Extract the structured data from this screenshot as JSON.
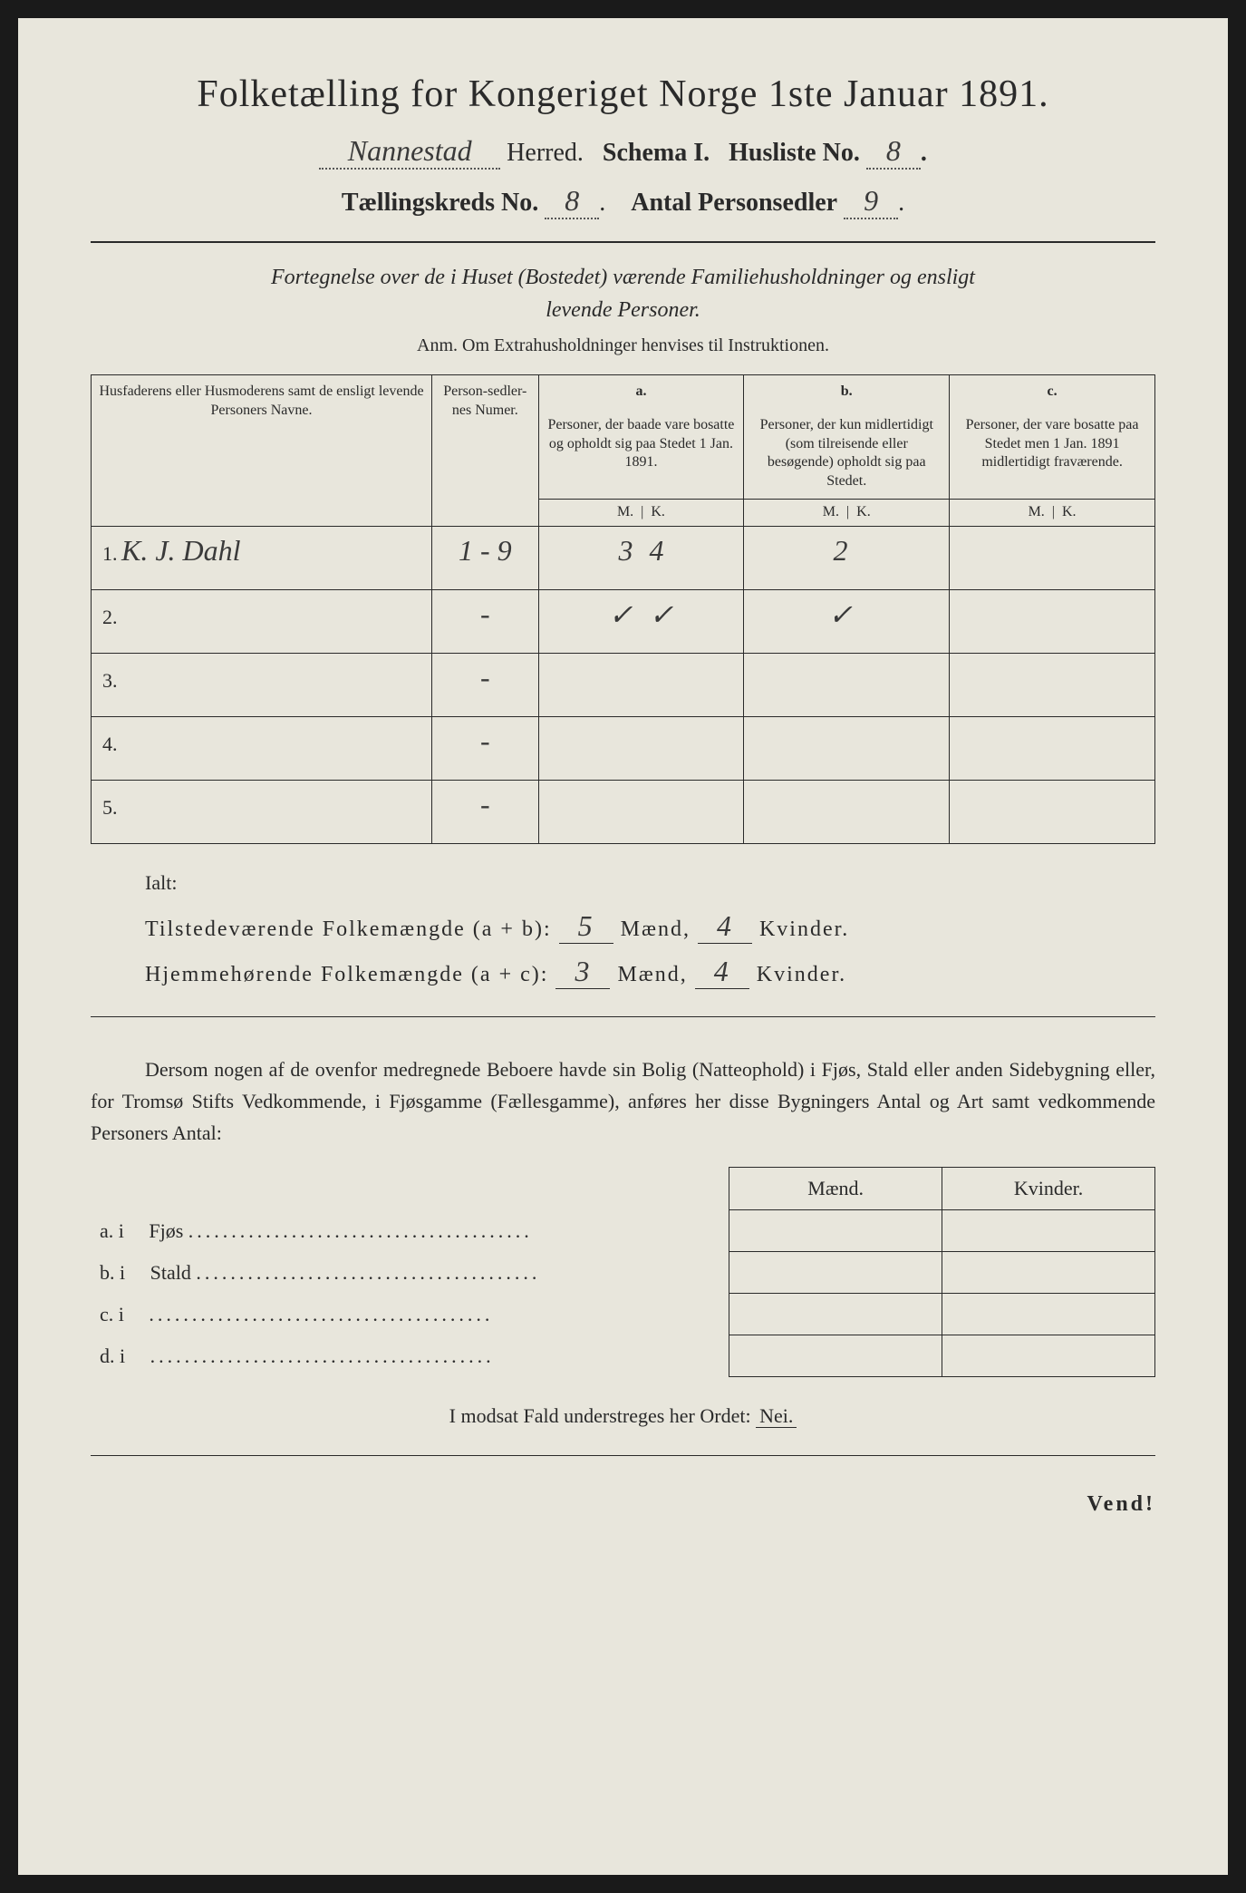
{
  "header": {
    "title": "Folketælling for Kongeriget Norge 1ste Januar 1891.",
    "herred_value": "Nannestad",
    "herred_label": "Herred.",
    "schema_label": "Schema I.",
    "husliste_label": "Husliste No.",
    "husliste_value": "8",
    "kreds_label": "Tællingskreds No.",
    "kreds_value": "8",
    "personsedler_label": "Antal Personsedler",
    "personsedler_value": "9"
  },
  "subtitle": {
    "line1": "Fortegnelse over de i Huset (Bostedet) værende Familiehusholdninger og ensligt",
    "line2": "levende Personer.",
    "anm": "Anm. Om Extrahusholdninger henvises til Instruktionen."
  },
  "table": {
    "col_name": "Husfaderens eller Husmoderens samt de ensligt levende Personers Navne.",
    "col_num": "Person-sedler-nes Numer.",
    "col_a_label": "a.",
    "col_a": "Personer, der baade vare bosatte og opholdt sig paa Stedet 1 Jan. 1891.",
    "col_b_label": "b.",
    "col_b": "Personer, der kun midlertidigt (som tilreisende eller besøgende) opholdt sig paa Stedet.",
    "col_c_label": "c.",
    "col_c": "Personer, der vare bosatte paa Stedet men 1 Jan. 1891 midlertidigt fraværende.",
    "m": "M.",
    "k": "K.",
    "rows": [
      {
        "n": "1.",
        "name": "K. J. Dahl",
        "num": "1 - 9",
        "am": "3",
        "ak": "4",
        "bm": "2",
        "bk": "",
        "cm": "",
        "ck": ""
      },
      {
        "n": "2.",
        "name": "",
        "num": "-",
        "am": "✓",
        "ak": "✓",
        "bm": "✓",
        "bk": "",
        "cm": "",
        "ck": ""
      },
      {
        "n": "3.",
        "name": "",
        "num": "-",
        "am": "",
        "ak": "",
        "bm": "",
        "bk": "",
        "cm": "",
        "ck": ""
      },
      {
        "n": "4.",
        "name": "",
        "num": "-",
        "am": "",
        "ak": "",
        "bm": "",
        "bk": "",
        "cm": "",
        "ck": ""
      },
      {
        "n": "5.",
        "name": "",
        "num": "-",
        "am": "",
        "ak": "",
        "bm": "",
        "bk": "",
        "cm": "",
        "ck": ""
      }
    ]
  },
  "ialt": {
    "label": "Ialt:",
    "line1_label": "Tilstedeværende Folkemængde (a + b):",
    "line1_m": "5",
    "line1_k": "4",
    "line2_label": "Hjemmehørende Folkemængde (a + c):",
    "line2_m": "3",
    "line2_k": "4",
    "maend": "Mænd,",
    "kvinder": "Kvinder."
  },
  "paragraph": "Dersom nogen af de ovenfor medregnede Beboere havde sin Bolig (Natteophold) i Fjøs, Stald eller anden Sidebygning eller, for Tromsø Stifts Vedkommende, i Fjøsgamme (Fællesgamme), anføres her disse Bygningers Antal og Art samt vedkommende Personers Antal:",
  "small_table": {
    "maend": "Mænd.",
    "kvinder": "Kvinder.",
    "rows": [
      {
        "label": "a.  i",
        "type": "Fjøs"
      },
      {
        "label": "b.  i",
        "type": "Stald"
      },
      {
        "label": "c.  i",
        "type": ""
      },
      {
        "label": "d.  i",
        "type": ""
      }
    ]
  },
  "footer": {
    "line": "I modsat Fald understreges her Ordet:",
    "nei": "Nei.",
    "vend": "Vend!"
  }
}
